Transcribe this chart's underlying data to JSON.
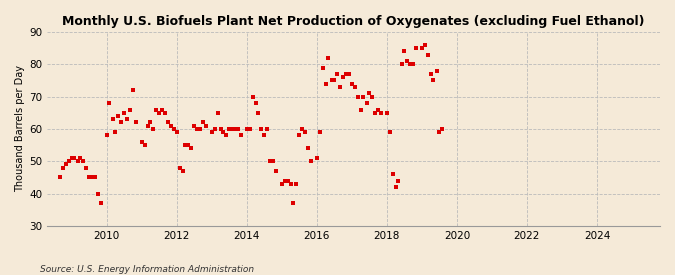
{
  "title": "Monthly U.S. Biofuels Plant Net Production of Oxygenates (excluding Fuel Ethanol)",
  "ylabel": "Thousand Barrels per Day",
  "source": "Source: U.S. Energy Information Administration",
  "background_color": "#f5ead8",
  "marker_color": "#dd0000",
  "ylim": [
    30,
    90
  ],
  "yticks": [
    30,
    40,
    50,
    60,
    70,
    80,
    90
  ],
  "xlim_start": 2008.3,
  "xlim_end": 2025.8,
  "xticks": [
    2010,
    2012,
    2014,
    2016,
    2018,
    2020,
    2022,
    2024
  ],
  "data": [
    [
      2008.67,
      45
    ],
    [
      2008.75,
      48
    ],
    [
      2008.83,
      49
    ],
    [
      2008.92,
      50
    ],
    [
      2009.0,
      51
    ],
    [
      2009.08,
      51
    ],
    [
      2009.17,
      50
    ],
    [
      2009.25,
      51
    ],
    [
      2009.33,
      50
    ],
    [
      2009.42,
      48
    ],
    [
      2009.5,
      45
    ],
    [
      2009.58,
      45
    ],
    [
      2009.67,
      45
    ],
    [
      2009.75,
      40
    ],
    [
      2009.83,
      37
    ],
    [
      2010.0,
      58
    ],
    [
      2010.08,
      68
    ],
    [
      2010.17,
      63
    ],
    [
      2010.25,
      59
    ],
    [
      2010.33,
      64
    ],
    [
      2010.42,
      62
    ],
    [
      2010.5,
      65
    ],
    [
      2010.58,
      63
    ],
    [
      2010.67,
      66
    ],
    [
      2010.75,
      72
    ],
    [
      2010.83,
      62
    ],
    [
      2011.0,
      56
    ],
    [
      2011.08,
      55
    ],
    [
      2011.17,
      61
    ],
    [
      2011.25,
      62
    ],
    [
      2011.33,
      60
    ],
    [
      2011.42,
      66
    ],
    [
      2011.5,
      65
    ],
    [
      2011.58,
      66
    ],
    [
      2011.67,
      65
    ],
    [
      2011.75,
      62
    ],
    [
      2011.83,
      61
    ],
    [
      2011.92,
      60
    ],
    [
      2012.0,
      59
    ],
    [
      2012.08,
      48
    ],
    [
      2012.17,
      47
    ],
    [
      2012.25,
      55
    ],
    [
      2012.33,
      55
    ],
    [
      2012.42,
      54
    ],
    [
      2012.5,
      61
    ],
    [
      2012.58,
      60
    ],
    [
      2012.67,
      60
    ],
    [
      2012.75,
      62
    ],
    [
      2012.83,
      61
    ],
    [
      2013.0,
      59
    ],
    [
      2013.08,
      60
    ],
    [
      2013.17,
      65
    ],
    [
      2013.25,
      60
    ],
    [
      2013.33,
      59
    ],
    [
      2013.42,
      58
    ],
    [
      2013.5,
      60
    ],
    [
      2013.58,
      60
    ],
    [
      2013.67,
      60
    ],
    [
      2013.75,
      60
    ],
    [
      2013.83,
      58
    ],
    [
      2014.0,
      60
    ],
    [
      2014.08,
      60
    ],
    [
      2014.17,
      70
    ],
    [
      2014.25,
      68
    ],
    [
      2014.33,
      65
    ],
    [
      2014.42,
      60
    ],
    [
      2014.5,
      58
    ],
    [
      2014.58,
      60
    ],
    [
      2014.67,
      50
    ],
    [
      2014.75,
      50
    ],
    [
      2014.83,
      47
    ],
    [
      2015.0,
      43
    ],
    [
      2015.08,
      44
    ],
    [
      2015.17,
      44
    ],
    [
      2015.25,
      43
    ],
    [
      2015.33,
      37
    ],
    [
      2015.42,
      43
    ],
    [
      2015.5,
      58
    ],
    [
      2015.58,
      60
    ],
    [
      2015.67,
      59
    ],
    [
      2015.75,
      54
    ],
    [
      2015.83,
      50
    ],
    [
      2016.0,
      51
    ],
    [
      2016.08,
      59
    ],
    [
      2016.17,
      79
    ],
    [
      2016.25,
      74
    ],
    [
      2016.33,
      82
    ],
    [
      2016.42,
      75
    ],
    [
      2016.5,
      75
    ],
    [
      2016.58,
      77
    ],
    [
      2016.67,
      73
    ],
    [
      2016.75,
      76
    ],
    [
      2016.83,
      77
    ],
    [
      2016.92,
      77
    ],
    [
      2017.0,
      74
    ],
    [
      2017.08,
      73
    ],
    [
      2017.17,
      70
    ],
    [
      2017.25,
      66
    ],
    [
      2017.33,
      70
    ],
    [
      2017.42,
      68
    ],
    [
      2017.5,
      71
    ],
    [
      2017.58,
      70
    ],
    [
      2017.67,
      65
    ],
    [
      2017.75,
      66
    ],
    [
      2017.83,
      65
    ],
    [
      2018.0,
      65
    ],
    [
      2018.08,
      59
    ],
    [
      2018.17,
      46
    ],
    [
      2018.25,
      42
    ],
    [
      2018.33,
      44
    ],
    [
      2018.42,
      80
    ],
    [
      2018.5,
      84
    ],
    [
      2018.58,
      81
    ],
    [
      2018.67,
      80
    ],
    [
      2018.75,
      80
    ],
    [
      2018.83,
      85
    ],
    [
      2019.0,
      85
    ],
    [
      2019.08,
      86
    ],
    [
      2019.17,
      83
    ],
    [
      2019.25,
      77
    ],
    [
      2019.33,
      75
    ],
    [
      2019.42,
      78
    ],
    [
      2019.5,
      59
    ],
    [
      2019.58,
      60
    ]
  ]
}
